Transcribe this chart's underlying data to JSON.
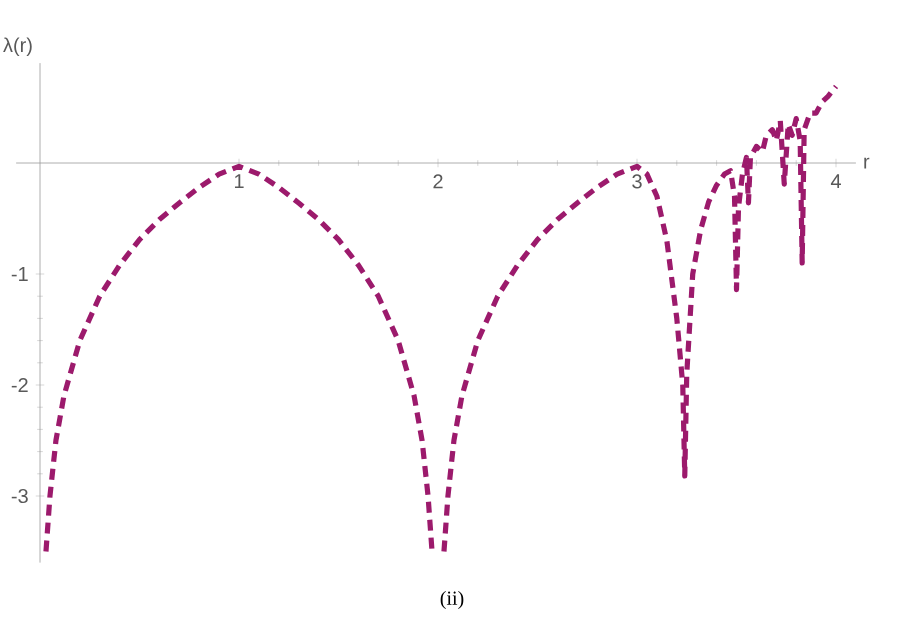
{
  "chart_data": {
    "type": "line",
    "xlabel": "r",
    "ylabel": "λ(r)",
    "xlim": [
      -0.12,
      4.1
    ],
    "ylim": [
      -3.6,
      0.9
    ],
    "xticks": [
      1,
      2,
      3,
      4
    ],
    "yticks": [
      -3,
      -2,
      -1
    ],
    "marker": "none",
    "line_style": "dashed",
    "grid": false,
    "annotations": [
      "(ii)"
    ],
    "series": [
      {
        "color": "#9c1a6c",
        "x": [
          0.03,
          0.05,
          0.08,
          0.12,
          0.2,
          0.3,
          0.4,
          0.5,
          0.6,
          0.7,
          0.8,
          0.9,
          1.0,
          1.1,
          1.2,
          1.3,
          1.4,
          1.5,
          1.6,
          1.7,
          1.8,
          1.88,
          1.92,
          1.95,
          1.97,
          2.0,
          2.03,
          2.05,
          2.08,
          2.12,
          2.2,
          2.3,
          2.4,
          2.5,
          2.6,
          2.7,
          2.8,
          2.9,
          3.0,
          3.05,
          3.1,
          3.15,
          3.2,
          3.23,
          3.24,
          3.25,
          3.28,
          3.32,
          3.36,
          3.4,
          3.44,
          3.47,
          3.49,
          3.5,
          3.51,
          3.53,
          3.55,
          3.56,
          3.57,
          3.6,
          3.63,
          3.65,
          3.68,
          3.7,
          3.72,
          3.74,
          3.76,
          3.78,
          3.8,
          3.82,
          3.83,
          3.84,
          3.87,
          3.9,
          3.93,
          3.96,
          4.0
        ],
        "values": [
          -3.5,
          -3.0,
          -2.5,
          -2.1,
          -1.6,
          -1.2,
          -0.92,
          -0.69,
          -0.51,
          -0.36,
          -0.22,
          -0.1,
          -0.03,
          -0.1,
          -0.22,
          -0.36,
          -0.51,
          -0.69,
          -0.92,
          -1.2,
          -1.6,
          -2.1,
          -2.5,
          -3.0,
          -3.5,
          null,
          -3.5,
          -3.0,
          -2.5,
          -2.1,
          -1.6,
          -1.2,
          -0.92,
          -0.69,
          -0.51,
          -0.36,
          -0.22,
          -0.1,
          -0.03,
          -0.1,
          -0.3,
          -0.7,
          -1.4,
          -2.0,
          -2.82,
          -1.9,
          -1.0,
          -0.6,
          -0.35,
          -0.2,
          -0.1,
          -0.07,
          -0.3,
          -1.14,
          -0.4,
          -0.1,
          0.05,
          -0.36,
          0.05,
          0.15,
          0.1,
          0.25,
          0.3,
          0.2,
          0.38,
          -0.19,
          0.35,
          0.25,
          0.4,
          0.2,
          -0.9,
          0.3,
          0.45,
          0.45,
          0.55,
          0.6,
          0.69
        ]
      }
    ]
  }
}
